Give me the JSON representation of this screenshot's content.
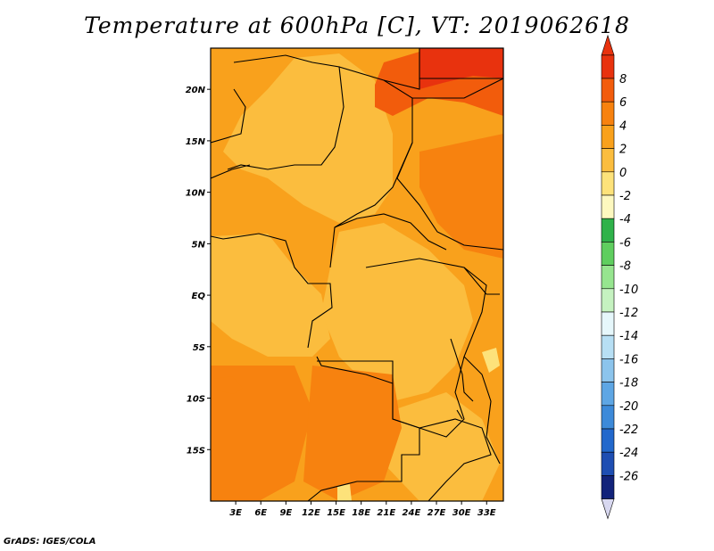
{
  "title": "Temperature at 600hPa [C], VT: 2019062618",
  "credit": "GrADS: IGES/COLA",
  "map": {
    "lon_range": [
      0,
      35
    ],
    "lat_range": [
      -20,
      24
    ],
    "lat_ticks": [
      {
        "value": 20,
        "label": "20N"
      },
      {
        "value": 15,
        "label": "15N"
      },
      {
        "value": 10,
        "label": "10N"
      },
      {
        "value": 5,
        "label": "5N"
      },
      {
        "value": 0,
        "label": "EQ"
      },
      {
        "value": -5,
        "label": "5S"
      },
      {
        "value": -10,
        "label": "10S"
      },
      {
        "value": -15,
        "label": "15S"
      }
    ],
    "lon_ticks": [
      {
        "value": 3,
        "label": "3E"
      },
      {
        "value": 6,
        "label": "6E"
      },
      {
        "value": 9,
        "label": "9E"
      },
      {
        "value": 12,
        "label": "12E"
      },
      {
        "value": 15,
        "label": "15E"
      },
      {
        "value": 18,
        "label": "18E"
      },
      {
        "value": 21,
        "label": "21E"
      },
      {
        "value": 24,
        "label": "24E"
      },
      {
        "value": 27,
        "label": "27E"
      },
      {
        "value": 30,
        "label": "30E"
      },
      {
        "value": 33,
        "label": "33E"
      }
    ]
  },
  "colorbar": {
    "levels": [
      "8",
      "6",
      "4",
      "2",
      "0",
      "-2",
      "-4",
      "-6",
      "-8",
      "-10",
      "-12",
      "-14",
      "-16",
      "-18",
      "-20",
      "-22",
      "-24",
      "-26"
    ],
    "colors": [
      "#e8320e",
      "#f25c0c",
      "#f7820f",
      "#f9a11c",
      "#fbbd3e",
      "#fde27a",
      "#fdf8bf",
      "#2fb24a",
      "#5fce5f",
      "#96e58f",
      "#c5f2c0",
      "#e6f7fb",
      "#b7dff4",
      "#8cc4ec",
      "#5ea6e4",
      "#3d8ad9",
      "#2268cc",
      "#1e4eb2",
      "#12237a"
    ],
    "top_arrow_color": "#e8320e",
    "bottom_arrow_color": "#d8d8f0"
  },
  "palette": {
    "base": "#fbbd3e",
    "warm": "#f9a11c",
    "warmer": "#f7820f",
    "hot": "#f25c0c",
    "hottest": "#e8320e",
    "cool": "#fde27a"
  }
}
